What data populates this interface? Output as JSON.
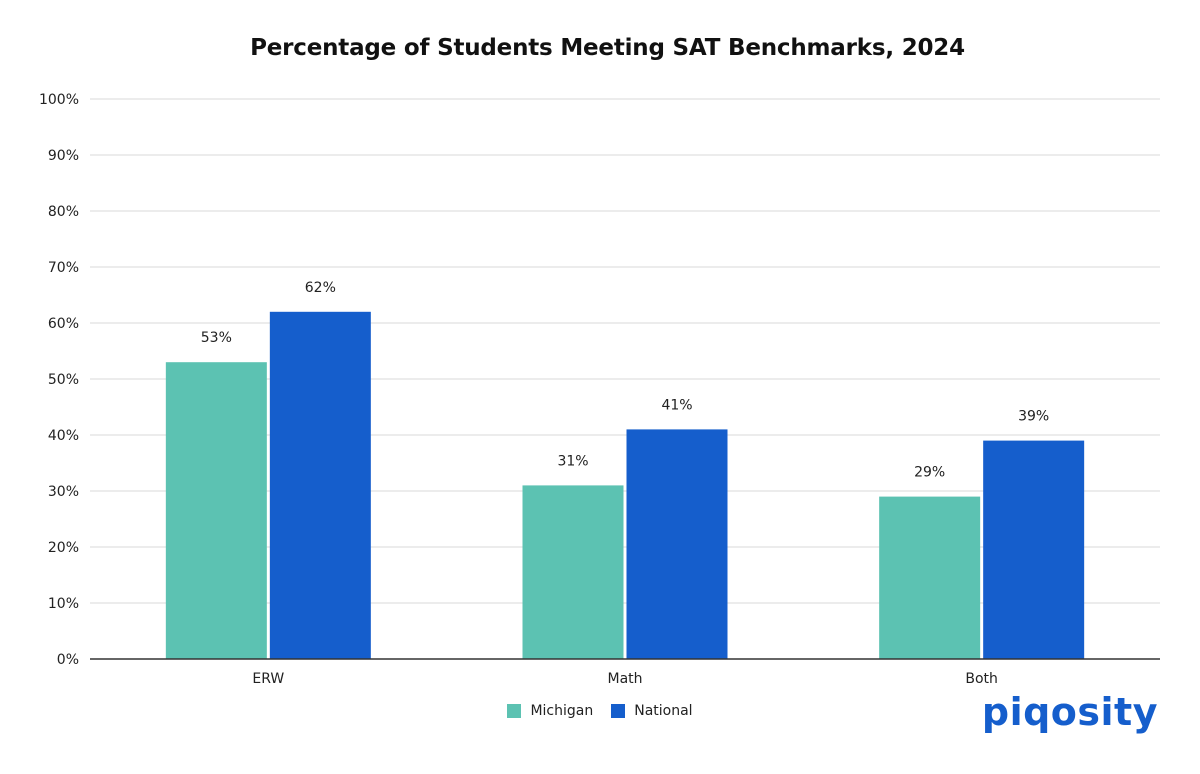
{
  "colors": {
    "michigan": "#5cc2b2",
    "national": "#155ecc",
    "grid": "#d9d9d9",
    "axis": "#333333",
    "logo": "#155ecc"
  },
  "logo_text": "piqosity",
  "chart_data": {
    "type": "bar",
    "title": "Percentage of Students Meeting SAT Benchmarks, 2024",
    "xlabel": "",
    "ylabel": "",
    "categories": [
      "ERW",
      "Math",
      "Both"
    ],
    "series": [
      {
        "name": "Michigan",
        "values": [
          53,
          31,
          29
        ],
        "labels": [
          "53%",
          "31%",
          "29%"
        ]
      },
      {
        "name": "National",
        "values": [
          62,
          41,
          39
        ],
        "labels": [
          "62%",
          "41%",
          "39%"
        ]
      }
    ],
    "ylim": [
      0,
      100
    ],
    "yticks": [
      0,
      10,
      20,
      30,
      40,
      50,
      60,
      70,
      80,
      90,
      100
    ],
    "ytick_labels": [
      "0%",
      "10%",
      "20%",
      "30%",
      "40%",
      "50%",
      "60%",
      "70%",
      "80%",
      "90%",
      "100%"
    ],
    "grid": true,
    "legend": "bottom-center"
  }
}
